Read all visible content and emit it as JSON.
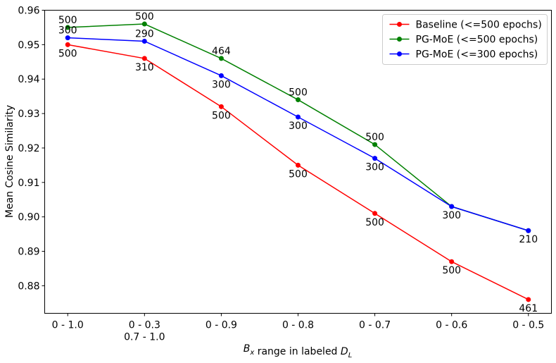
{
  "chart_data": {
    "type": "line",
    "x_label": "$B_x$ range in labeled $D_L$",
    "y_label": "Mean Cosine Similarity",
    "categories": [
      "0 - 1.0",
      "0 - 0.3\n0.7 - 1.0",
      "0 - 0.9",
      "0 - 0.8",
      "0 - 0.7",
      "0 - 0.6",
      "0 - 0.5"
    ],
    "series": [
      {
        "name": "Baseline (<=500 epochs)",
        "color": "#ff0000",
        "values": [
          0.95,
          0.946,
          0.932,
          0.915,
          0.901,
          0.887,
          0.876
        ],
        "point_labels": [
          500,
          310,
          500,
          500,
          500,
          500,
          461
        ]
      },
      {
        "name": "PG-MoE (<=500 epochs)",
        "color": "#008000",
        "values": [
          0.955,
          0.956,
          0.946,
          0.934,
          0.921,
          0.903,
          0.896
        ],
        "point_labels": [
          500,
          500,
          464,
          500,
          500,
          null,
          null
        ]
      },
      {
        "name": "PG-MoE (<=300 epochs)",
        "color": "#0000ff",
        "values": [
          0.952,
          0.951,
          0.941,
          0.929,
          0.917,
          0.903,
          0.896
        ],
        "point_labels": [
          300,
          290,
          300,
          300,
          300,
          300,
          210
        ]
      }
    ],
    "ylim": [
      0.872,
      0.96
    ],
    "yticks": [
      0.88,
      0.89,
      {
        "value": 0.9,
        "label": "0.90"
      },
      0.91,
      0.92,
      0.93,
      0.94,
      0.95,
      {
        "value": 0.96,
        "label": "0.96"
      }
    ],
    "legend": "upper right",
    "grid": false
  }
}
